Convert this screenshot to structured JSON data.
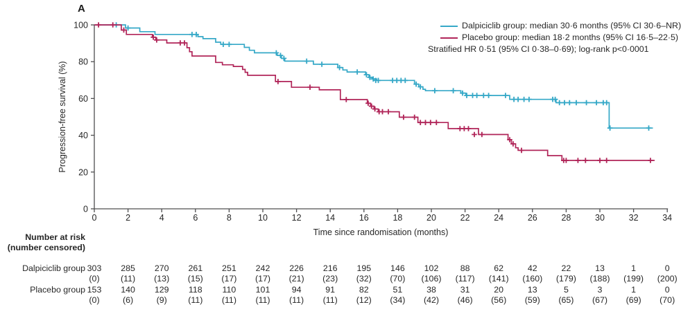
{
  "panel_label": "A",
  "colors": {
    "dalpiciclib": "#35a8c7",
    "placebo": "#b02458",
    "axis": "#4d4d4f",
    "text": "#262626"
  },
  "legend": {
    "dalpiciclib_label": "Dalpiciclib group: median 30·6 months (95% CI 30·6–NR)",
    "placebo_label": "Placebo group: median 18·2 months (95% CI 16·5–22·5)",
    "stratified_line": "Stratified HR 0·51 (95% CI 0·38–0·69); log-rank p<0·0001"
  },
  "chart_data": {
    "type": "line",
    "subtype": "kaplan-meier-step",
    "xlabel": "Time since randomisation (months)",
    "ylabel": "Progression-free survival (%)",
    "xlim": [
      0,
      34
    ],
    "ylim": [
      0,
      100
    ],
    "x_ticks": [
      0,
      2,
      4,
      6,
      8,
      10,
      12,
      14,
      16,
      18,
      20,
      22,
      24,
      26,
      28,
      30,
      32,
      34
    ],
    "y_ticks": [
      0,
      20,
      40,
      60,
      80,
      100
    ],
    "grid": false,
    "legend_position": "top-right",
    "series": [
      {
        "name": "Dalpiciclib group",
        "color": "#35a8c7",
        "median_months": "30·6",
        "ci": "30·6–NR",
        "end_x": 33.15,
        "steps": [
          [
            0,
            100
          ],
          [
            1.85,
            98.3
          ],
          [
            2.7,
            96.3
          ],
          [
            3.6,
            94.8
          ],
          [
            6.15,
            93.6
          ],
          [
            6.45,
            92.5
          ],
          [
            7.2,
            90.6
          ],
          [
            7.5,
            89.4
          ],
          [
            8.9,
            87.8
          ],
          [
            9.2,
            86.2
          ],
          [
            9.5,
            84.8
          ],
          [
            10.85,
            83.4
          ],
          [
            11.1,
            81.8
          ],
          [
            11.3,
            80.3
          ],
          [
            13.0,
            78.6
          ],
          [
            14.45,
            76.8
          ],
          [
            14.75,
            75.5
          ],
          [
            15.0,
            74.4
          ],
          [
            16.1,
            72.9
          ],
          [
            16.3,
            71.5
          ],
          [
            16.5,
            70.6
          ],
          [
            16.75,
            69.8
          ],
          [
            19.0,
            67.8
          ],
          [
            19.25,
            66.3
          ],
          [
            19.5,
            65.0
          ],
          [
            19.65,
            64.2
          ],
          [
            21.75,
            62.9
          ],
          [
            22.05,
            61.6
          ],
          [
            24.65,
            59.5
          ],
          [
            27.4,
            57.7
          ],
          [
            30.55,
            43.9
          ]
        ],
        "censors": [
          [
            1.3,
            100
          ],
          [
            2.0,
            98.3
          ],
          [
            5.8,
            94.8
          ],
          [
            6.05,
            94.8
          ],
          [
            7.65,
            89.4
          ],
          [
            8.0,
            89.4
          ],
          [
            10.8,
            84.8
          ],
          [
            11.05,
            83.4
          ],
          [
            11.25,
            81.8
          ],
          [
            12.6,
            80.3
          ],
          [
            13.5,
            78.6
          ],
          [
            14.55,
            76.8
          ],
          [
            15.6,
            74.4
          ],
          [
            16.15,
            72.9
          ],
          [
            16.35,
            71.5
          ],
          [
            16.55,
            70.6
          ],
          [
            16.7,
            69.8
          ],
          [
            16.85,
            69.8
          ],
          [
            17.7,
            69.8
          ],
          [
            17.95,
            69.8
          ],
          [
            18.2,
            69.8
          ],
          [
            18.45,
            69.8
          ],
          [
            19.1,
            67.8
          ],
          [
            19.35,
            66.3
          ],
          [
            20.2,
            64.2
          ],
          [
            21.3,
            64.2
          ],
          [
            21.85,
            62.9
          ],
          [
            22.1,
            61.6
          ],
          [
            22.45,
            61.6
          ],
          [
            22.7,
            61.6
          ],
          [
            23.1,
            61.6
          ],
          [
            23.4,
            61.6
          ],
          [
            24.4,
            61.6
          ],
          [
            24.9,
            59.5
          ],
          [
            25.15,
            59.5
          ],
          [
            25.5,
            59.5
          ],
          [
            25.8,
            59.5
          ],
          [
            27.2,
            59.5
          ],
          [
            27.35,
            59.5
          ],
          [
            27.6,
            57.7
          ],
          [
            27.9,
            57.7
          ],
          [
            28.2,
            57.7
          ],
          [
            28.6,
            57.7
          ],
          [
            29.2,
            57.7
          ],
          [
            29.8,
            57.7
          ],
          [
            30.2,
            57.7
          ],
          [
            30.4,
            57.7
          ],
          [
            30.6,
            43.9
          ],
          [
            32.9,
            43.9
          ]
        ]
      },
      {
        "name": "Placebo group",
        "color": "#b02458",
        "median_months": "18·2",
        "ci": "16·5–22·5",
        "end_x": 33.25,
        "steps": [
          [
            0,
            100
          ],
          [
            1.6,
            97.2
          ],
          [
            1.9,
            94.8
          ],
          [
            3.45,
            93.3
          ],
          [
            3.65,
            91.8
          ],
          [
            4.3,
            90.2
          ],
          [
            5.5,
            87.6
          ],
          [
            5.65,
            85.4
          ],
          [
            5.8,
            83.1
          ],
          [
            7.2,
            79.6
          ],
          [
            7.6,
            78.3
          ],
          [
            8.25,
            77.4
          ],
          [
            8.8,
            75.8
          ],
          [
            8.95,
            74.2
          ],
          [
            9.1,
            72.6
          ],
          [
            10.75,
            69.2
          ],
          [
            11.7,
            66.1
          ],
          [
            13.35,
            64.7
          ],
          [
            14.6,
            59.4
          ],
          [
            16.2,
            57.4
          ],
          [
            16.4,
            55.8
          ],
          [
            16.6,
            54.3
          ],
          [
            16.85,
            52.8
          ],
          [
            18.1,
            49.8
          ],
          [
            19.2,
            46.9
          ],
          [
            21.0,
            43.6
          ],
          [
            22.8,
            40.4
          ],
          [
            24.55,
            37.6
          ],
          [
            24.75,
            35.3
          ],
          [
            25.0,
            33.2
          ],
          [
            25.15,
            31.8
          ],
          [
            26.9,
            28.9
          ],
          [
            27.75,
            26.3
          ]
        ],
        "censors": [
          [
            0.25,
            100
          ],
          [
            1.1,
            100
          ],
          [
            1.75,
            97.2
          ],
          [
            3.5,
            93.3
          ],
          [
            3.7,
            91.8
          ],
          [
            5.1,
            90.2
          ],
          [
            5.35,
            90.2
          ],
          [
            10.9,
            69.2
          ],
          [
            12.8,
            66.1
          ],
          [
            14.95,
            59.4
          ],
          [
            16.25,
            57.4
          ],
          [
            16.45,
            55.8
          ],
          [
            16.65,
            54.3
          ],
          [
            16.9,
            52.8
          ],
          [
            17.1,
            52.8
          ],
          [
            17.45,
            52.8
          ],
          [
            18.35,
            49.8
          ],
          [
            19.0,
            49.8
          ],
          [
            19.35,
            46.9
          ],
          [
            19.65,
            46.9
          ],
          [
            19.95,
            46.9
          ],
          [
            20.3,
            46.9
          ],
          [
            21.7,
            43.6
          ],
          [
            21.95,
            43.6
          ],
          [
            22.2,
            43.6
          ],
          [
            22.55,
            40.4
          ],
          [
            23.0,
            40.4
          ],
          [
            24.65,
            37.6
          ],
          [
            24.85,
            35.3
          ],
          [
            25.35,
            31.8
          ],
          [
            27.85,
            26.3
          ],
          [
            28.0,
            26.3
          ],
          [
            28.7,
            26.3
          ],
          [
            29.15,
            26.3
          ],
          [
            30.0,
            26.3
          ],
          [
            30.4,
            26.3
          ],
          [
            33.0,
            26.3
          ]
        ]
      }
    ],
    "annotations": [
      "Stratified HR 0·51 (95% CI 0·38–0·69); log-rank p<0·0001"
    ]
  },
  "risk_table": {
    "header_line1": "Number at risk",
    "header_line2": "(number censored)",
    "time_points": [
      0,
      2,
      4,
      6,
      8,
      10,
      12,
      14,
      16,
      18,
      20,
      22,
      24,
      26,
      28,
      30,
      32,
      34
    ],
    "rows": [
      {
        "label": "Dalpiciclib group",
        "at_risk": [
          303,
          285,
          270,
          261,
          251,
          242,
          226,
          216,
          195,
          146,
          102,
          88,
          62,
          42,
          22,
          13,
          1,
          0
        ],
        "censored": [
          0,
          11,
          13,
          15,
          17,
          17,
          21,
          23,
          32,
          70,
          106,
          117,
          141,
          160,
          179,
          188,
          199,
          200
        ]
      },
      {
        "label": "Placebo group",
        "at_risk": [
          153,
          140,
          129,
          118,
          110,
          101,
          94,
          91,
          82,
          51,
          38,
          31,
          20,
          13,
          5,
          3,
          1,
          0
        ],
        "censored": [
          0,
          6,
          9,
          11,
          11,
          11,
          11,
          11,
          12,
          34,
          42,
          46,
          56,
          59,
          65,
          67,
          69,
          70
        ]
      }
    ]
  }
}
